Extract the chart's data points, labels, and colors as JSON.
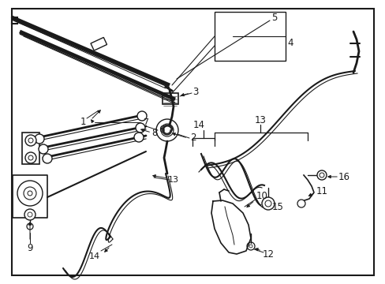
{
  "background_color": "#ffffff",
  "line_color": "#1a1a1a",
  "fig_width": 4.89,
  "fig_height": 3.6,
  "dpi": 100,
  "border": [
    0.03,
    0.03,
    0.97,
    0.97
  ]
}
